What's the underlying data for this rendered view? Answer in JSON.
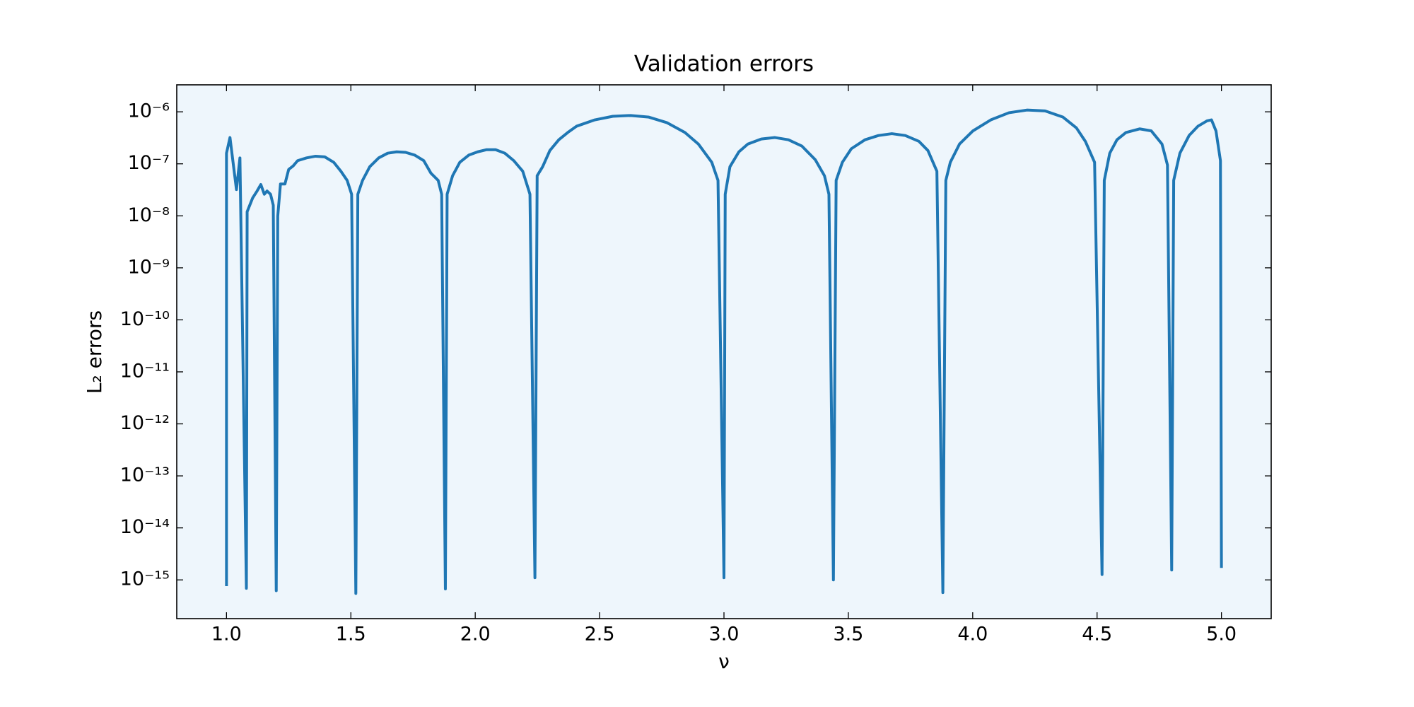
{
  "chart_data": {
    "type": "line",
    "title": "Validation errors",
    "x_label": "ν",
    "y_label": "L₂ errors",
    "color": "#1f77b4",
    "background": "#eef6fc",
    "log_y": true,
    "xlim": [
      0.8,
      5.2
    ],
    "ylim": [
      1.8e-16,
      3.3e-06
    ],
    "xticks": [
      {
        "value": 1,
        "label": "1.0"
      },
      1.5,
      {
        "value": 2,
        "label": "2.0"
      },
      2.5,
      {
        "value": 3,
        "label": "3.0"
      },
      3.5,
      {
        "value": 4,
        "label": "4.0"
      },
      4.5,
      {
        "value": 5,
        "label": "5.0"
      }
    ],
    "yticks": [
      {
        "value": 1e-15,
        "label": "10⁻¹⁵"
      },
      {
        "value": 1e-14,
        "label": "10⁻¹⁴"
      },
      {
        "value": 1e-13,
        "label": "10⁻¹³"
      },
      {
        "value": 1e-12,
        "label": "10⁻¹²"
      },
      {
        "value": 1e-11,
        "label": "10⁻¹¹"
      },
      {
        "value": 1e-10,
        "label": "10⁻¹⁰"
      },
      {
        "value": 1e-09,
        "label": "10⁻⁹"
      },
      {
        "value": 1e-08,
        "label": "10⁻⁸"
      },
      {
        "value": 1e-07,
        "label": "10⁻⁷"
      },
      {
        "value": 1e-06,
        "label": "10⁻⁶"
      }
    ],
    "x": [
      1.0,
      1.0,
      1.014,
      1.04,
      1.054,
      1.08,
      1.083,
      1.105,
      1.123,
      1.138,
      1.152,
      1.163,
      1.177,
      1.188,
      1.2,
      1.206,
      1.217,
      1.235,
      1.25,
      1.268,
      1.286,
      1.322,
      1.358,
      1.395,
      1.431,
      1.46,
      1.485,
      1.503,
      1.52,
      1.528,
      1.547,
      1.576,
      1.612,
      1.648,
      1.684,
      1.72,
      1.757,
      1.793,
      1.822,
      1.851,
      1.865,
      1.88,
      1.887,
      1.909,
      1.938,
      1.974,
      2.01,
      2.046,
      2.082,
      2.119,
      2.155,
      2.191,
      2.22,
      2.24,
      2.249,
      2.271,
      2.3,
      2.336,
      2.372,
      2.408,
      2.481,
      2.553,
      2.625,
      2.698,
      2.77,
      2.843,
      2.897,
      2.951,
      2.976,
      3.0,
      3.005,
      3.024,
      3.06,
      3.096,
      3.15,
      3.205,
      3.259,
      3.313,
      3.367,
      3.404,
      3.422,
      3.44,
      3.451,
      3.476,
      3.512,
      3.567,
      3.621,
      3.675,
      3.729,
      3.784,
      3.82,
      3.856,
      3.88,
      3.892,
      3.91,
      3.947,
      4.001,
      4.073,
      4.146,
      4.218,
      4.291,
      4.363,
      4.417,
      4.453,
      4.49,
      4.52,
      4.529,
      4.551,
      4.58,
      4.616,
      4.671,
      4.718,
      4.761,
      4.783,
      4.8,
      4.808,
      4.833,
      4.87,
      4.906,
      4.942,
      4.96,
      4.978,
      4.996,
      5.0
    ],
    "values": [
      7.6e-16,
      1.6e-07,
      3.2e-07,
      3.2e-08,
      1.3e-07,
      6.9e-16,
      1.2e-08,
      2.2e-08,
      3e-08,
      4e-08,
      2.6e-08,
      3e-08,
      2.6e-08,
      1.6e-08,
      6.2e-16,
      9.8e-09,
      4.1e-08,
      4.1e-08,
      7.8e-08,
      9.1e-08,
      1.15e-07,
      1.3e-07,
      1.4e-07,
      1.36e-07,
      1.07e-07,
      7.2e-08,
      4.8e-08,
      2.6e-08,
      5.5e-16,
      2.6e-08,
      4.8e-08,
      8.8e-08,
      1.3e-07,
      1.6e-07,
      1.7e-07,
      1.66e-07,
      1.47e-07,
      1.15e-07,
      6.6e-08,
      4.8e-08,
      2.6e-08,
      6.7e-16,
      2.6e-08,
      5.9e-08,
      1.07e-07,
      1.47e-07,
      1.7e-07,
      1.87e-07,
      1.87e-07,
      1.6e-07,
      1.15e-07,
      7.2e-08,
      2.6e-08,
      1.1e-15,
      5.9e-08,
      8.8e-08,
      1.8e-07,
      2.9e-07,
      4e-07,
      5.3e-07,
      7e-07,
      8.2e-07,
      8.5e-07,
      7.9e-07,
      6.2e-07,
      4e-07,
      2.4e-07,
      1.07e-07,
      4.8e-08,
      1.1e-15,
      2.6e-08,
      8.8e-08,
      1.7e-07,
      2.4e-07,
      3e-07,
      3.2e-07,
      2.9e-07,
      2.2e-07,
      1.2e-07,
      5.9e-08,
      2.6e-08,
      1e-15,
      4.8e-08,
      1.07e-07,
      1.95e-07,
      2.9e-07,
      3.5e-07,
      3.8e-07,
      3.5e-07,
      2.7e-07,
      1.8e-07,
      7.2e-08,
      5.7e-16,
      4.8e-08,
      1.07e-07,
      2.4e-07,
      4.3e-07,
      7e-07,
      9.6e-07,
      1.08e-06,
      1.04e-06,
      7.9e-07,
      4.9e-07,
      2.7e-07,
      1.07e-07,
      1.27e-15,
      4.8e-08,
      1.6e-07,
      2.9e-07,
      4e-07,
      4.7e-07,
      4.3e-07,
      2.4e-07,
      9.5e-08,
      1.55e-15,
      4.8e-08,
      1.6e-07,
      3.5e-07,
      5.3e-07,
      6.7e-07,
      7e-07,
      4.3e-07,
      1.15e-07,
      1.7e-15
    ]
  }
}
